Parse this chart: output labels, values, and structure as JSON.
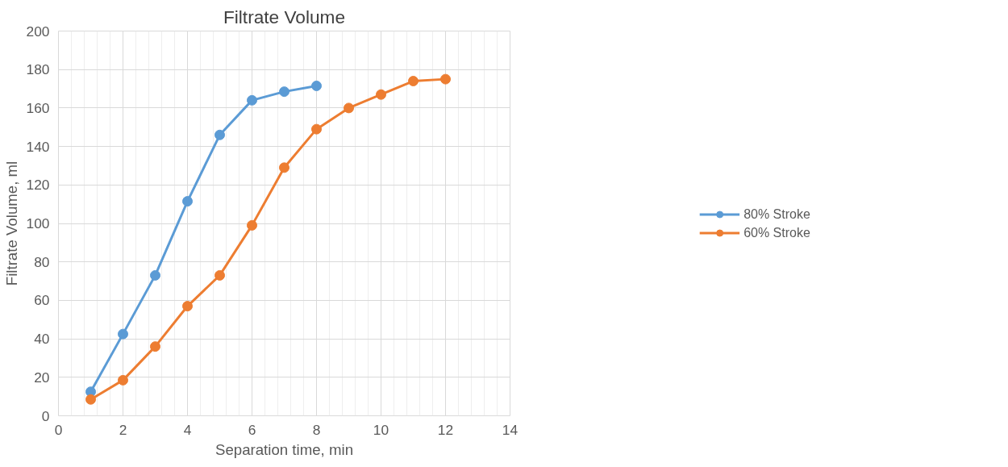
{
  "chart_data": {
    "type": "line",
    "title": "Filtrate Volume",
    "xlabel": "Separation time, min",
    "ylabel": "Filtrate Volume, ml",
    "series": [
      {
        "name": "80% Stroke",
        "color": "#5b9bd5",
        "x": [
          1,
          2,
          3,
          4,
          5,
          6,
          7,
          8
        ],
        "values": [
          12.5,
          42.5,
          73,
          111.5,
          146,
          164,
          168.5,
          171.5
        ]
      },
      {
        "name": "60% Stroke",
        "color": "#ed7d31",
        "x": [
          1,
          2,
          3,
          4,
          5,
          6,
          7,
          8,
          9,
          10,
          11,
          12
        ],
        "values": [
          8.5,
          18.5,
          36,
          57,
          73,
          99,
          129,
          149,
          160,
          167,
          174,
          175
        ]
      }
    ],
    "xlim": [
      0,
      14
    ],
    "ylim": [
      0,
      200
    ],
    "xticks": [
      0,
      2,
      4,
      6,
      8,
      10,
      12,
      14
    ],
    "yticks": [
      0,
      20,
      40,
      60,
      80,
      100,
      120,
      140,
      160,
      180,
      200
    ],
    "grid": true,
    "legend": "right",
    "marker": "circle",
    "line_style": "solid"
  }
}
